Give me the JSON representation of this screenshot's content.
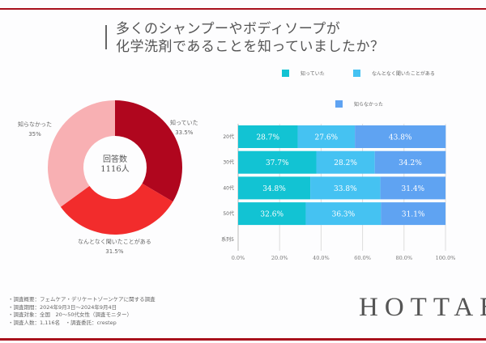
{
  "title_lines": [
    "多くのシャンプーやボディソープが",
    "化学洗剤であることを知っていましたか？"
  ],
  "colors": {
    "accent": "#a8101c",
    "bar_series": [
      "#12c3d3",
      "#45c2f2",
      "#5fa3f2"
    ],
    "pie": [
      "#b0061e",
      "#f22c2c",
      "#f8b0b3"
    ]
  },
  "chart_data": [
    {
      "type": "pie",
      "donut": true,
      "center_text": [
        "回答数",
        "1116人"
      ],
      "slices": [
        {
          "label": "知っていた",
          "value": 33.5,
          "display": "33.5%"
        },
        {
          "label": "なんとなく聞いたことがある",
          "value": 31.5,
          "display": "31.5%"
        },
        {
          "label": "知らなかった",
          "value": 35,
          "display": "35%"
        }
      ]
    },
    {
      "type": "bar",
      "orientation": "horizontal",
      "stacked": true,
      "categories": [
        "20代",
        "30代",
        "40代",
        "50代",
        "系列5"
      ],
      "series": [
        {
          "name": "知っていた",
          "values": [
            28.7,
            37.7,
            34.8,
            32.6,
            null
          ],
          "labels": [
            "28.7%",
            "37.7%",
            "34.8%",
            "32.6%",
            ""
          ]
        },
        {
          "name": "なんとなく聞いたことがある",
          "values": [
            27.6,
            28.2,
            33.8,
            36.3,
            null
          ],
          "labels": [
            "27.6%",
            "28.2%",
            "33.8%",
            "36.3%",
            ""
          ]
        },
        {
          "name": "知らなかった",
          "values": [
            43.8,
            34.2,
            31.4,
            31.1,
            null
          ],
          "labels": [
            "43.8%",
            "34.2%",
            "31.4%",
            "31.1%",
            ""
          ]
        }
      ],
      "xlim": [
        0,
        100
      ],
      "xticks": [
        "0.0%",
        "20.0%",
        "40.0%",
        "60.0%",
        "80.0%",
        "100.0%"
      ],
      "grid": true,
      "legend": "top"
    }
  ],
  "footer": [
    "・調査概要：フェムケア・デリケートゾーンケアに関する調査",
    "・調査期間：2024年9月3日〜2024年9月4日",
    "・調査対象：全国　20〜50代女性（調査モニター）",
    "・調査人数：1,116名　・調査委託：crestep"
  ],
  "logo": "HOTTAB"
}
